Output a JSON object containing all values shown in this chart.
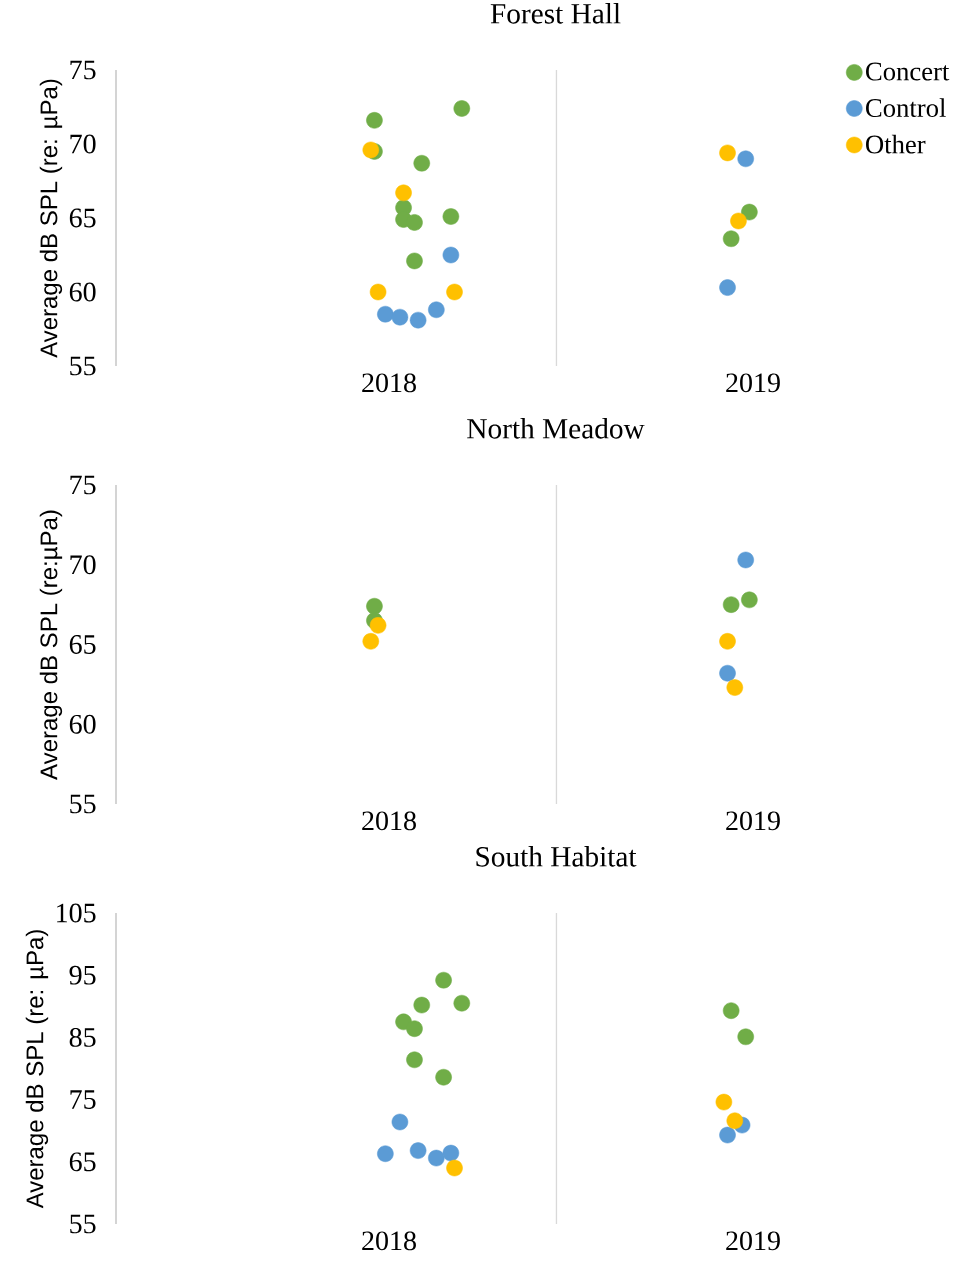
{
  "chart_data": [
    {
      "type": "scatter",
      "title": "Forest Hall",
      "ylabel": "Average dB SPL (re: µPa)",
      "xlim": [
        2017.25,
        2019
      ],
      "xticks": [
        2018,
        2019
      ],
      "ylim": [
        55,
        75
      ],
      "yticks": [
        55,
        60,
        65,
        70,
        75
      ],
      "marker": "circle",
      "legend": "top right",
      "ref_lines": [
        {
          "axis": "x",
          "value": 2018.46,
          "color": "#d9d9d9"
        }
      ],
      "series": [
        {
          "name": "Concert",
          "color": "#70ad47",
          "x": [
            2017.96,
            2018.2,
            2017.96,
            2018.09,
            2018.04,
            2018.04,
            2018.07,
            2018.17,
            2018.07,
            2018.99,
            2018.94
          ],
          "values": [
            71.6,
            72.4,
            69.5,
            68.7,
            65.7,
            64.9,
            64.7,
            65.1,
            62.1,
            65.4,
            63.6
          ]
        },
        {
          "name": "Control",
          "color": "#5b9bd5",
          "x": [
            2018.17,
            2017.99,
            2018.03,
            2018.08,
            2018.13,
            2018.98,
            2018.93
          ],
          "values": [
            62.5,
            58.5,
            58.3,
            58.1,
            58.8,
            69.0,
            60.3
          ]
        },
        {
          "name": "Other",
          "color": "#ffc000",
          "x": [
            2017.95,
            2018.04,
            2017.97,
            2018.18,
            2018.93,
            2018.96
          ],
          "values": [
            69.6,
            66.7,
            60.0,
            60.0,
            69.4,
            64.8
          ]
        }
      ]
    },
    {
      "type": "scatter",
      "title": "North Meadow",
      "ylabel": "Average dB SPL (re:µPa)",
      "xlim": [
        2017.25,
        2019
      ],
      "xticks": [
        2018,
        2019
      ],
      "ylim": [
        55,
        75
      ],
      "yticks": [
        55,
        60,
        65,
        70,
        75
      ],
      "marker": "circle",
      "ref_lines": [
        {
          "axis": "x",
          "value": 2018.46,
          "color": "#d9d9d9"
        }
      ],
      "series": [
        {
          "color": "#70ad47",
          "x": [
            2017.96,
            2017.96,
            2018.94,
            2018.99
          ],
          "values": [
            67.4,
            66.5,
            67.5,
            67.8
          ]
        },
        {
          "color": "#5b9bd5",
          "x": [
            2018.98,
            2018.93
          ],
          "values": [
            70.3,
            63.2
          ]
        },
        {
          "color": "#ffc000",
          "x": [
            2017.97,
            2017.95,
            2018.93,
            2018.95
          ],
          "values": [
            66.2,
            65.2,
            65.2,
            62.3
          ]
        }
      ]
    },
    {
      "type": "scatter",
      "title": "South Habitat",
      "ylabel": "Average dB SPL (re: µPa)",
      "xlim": [
        2017.25,
        2019
      ],
      "xticks": [
        2018,
        2019
      ],
      "ylim": [
        55,
        105
      ],
      "yticks": [
        55,
        65,
        75,
        85,
        95,
        105
      ],
      "marker": "circle",
      "ref_lines": [
        {
          "axis": "x",
          "value": 2018.46,
          "color": "#d9d9d9"
        }
      ],
      "series": [
        {
          "color": "#70ad47",
          "x": [
            2018.15,
            2018.2,
            2018.09,
            2018.04,
            2018.07,
            2018.07,
            2018.15,
            2018.94,
            2018.98
          ],
          "values": [
            94.2,
            90.5,
            90.2,
            87.5,
            86.4,
            81.4,
            78.6,
            89.3,
            85.1
          ]
        },
        {
          "color": "#5b9bd5",
          "x": [
            2018.03,
            2017.99,
            2018.08,
            2018.13,
            2018.17,
            2018.97,
            2018.93
          ],
          "values": [
            71.4,
            66.3,
            66.8,
            65.6,
            66.4,
            70.9,
            69.3
          ]
        },
        {
          "color": "#ffc000",
          "x": [
            2018.18,
            2018.92,
            2018.95
          ],
          "values": [
            64.0,
            74.6,
            71.6
          ]
        }
      ]
    }
  ]
}
